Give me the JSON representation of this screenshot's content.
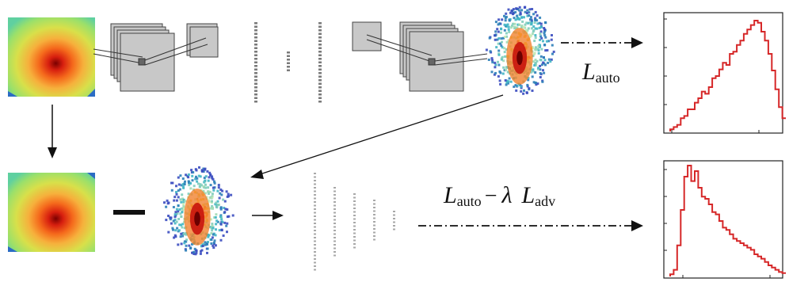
{
  "losses": {
    "autoencoder": {
      "main": "L",
      "sub": "auto"
    },
    "adversarial": {
      "first": "L",
      "first_sub": "auto",
      "minus": "−",
      "lambda": "λ",
      "second": "L",
      "second_sub": "adv"
    }
  },
  "colors": {
    "hist_line": "#d62728",
    "arrow": "#111111",
    "cnn_block": "#c8c8c8",
    "dots": "#808080"
  },
  "icons": {
    "minus_symbol": "subtract-sign",
    "arrows": "flow-arrow"
  }
}
